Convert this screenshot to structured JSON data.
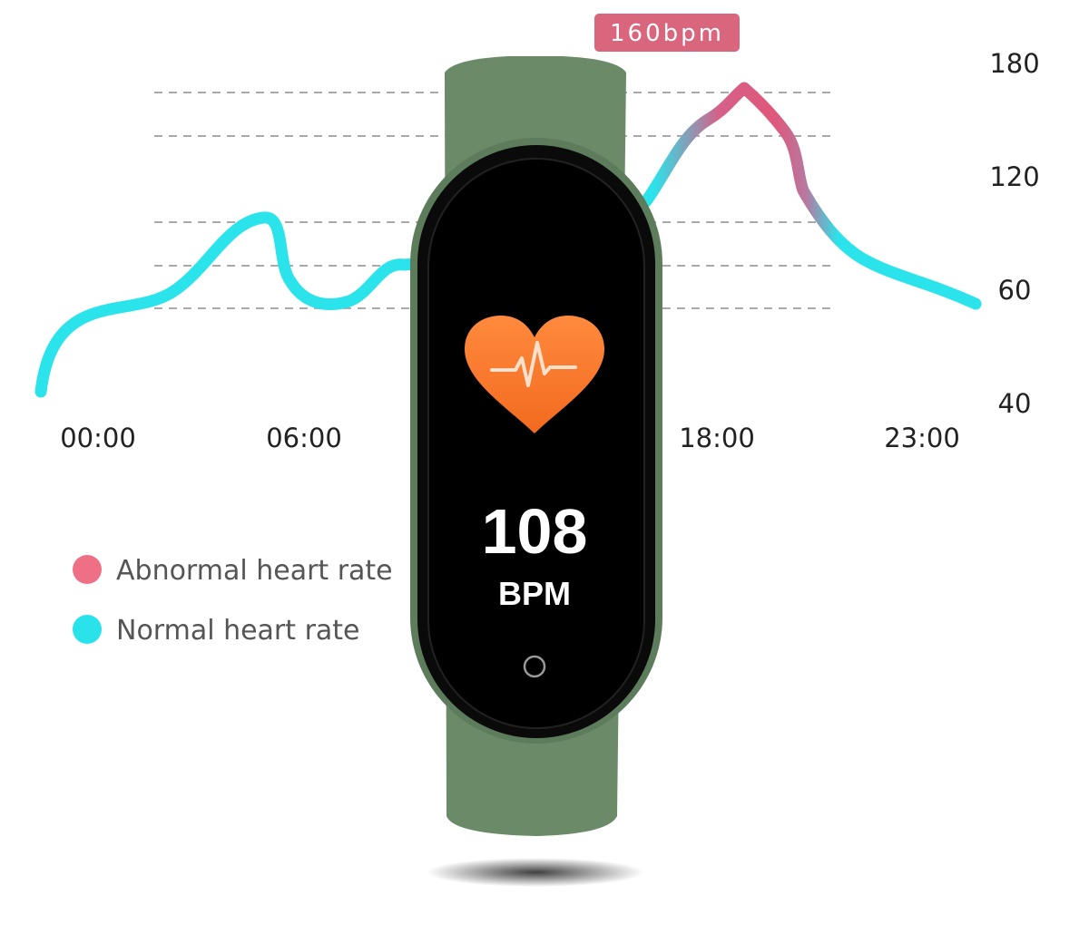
{
  "annotation": "160bpm",
  "y_labels": [
    "180",
    "120",
    "60",
    "40"
  ],
  "x_labels": [
    "00:00",
    "06:00",
    "18:00",
    "23:00"
  ],
  "legend": [
    "Abnormal heart rate",
    "Normal heart rate"
  ],
  "display": {
    "value": "108",
    "unit": "BPM"
  }
}
